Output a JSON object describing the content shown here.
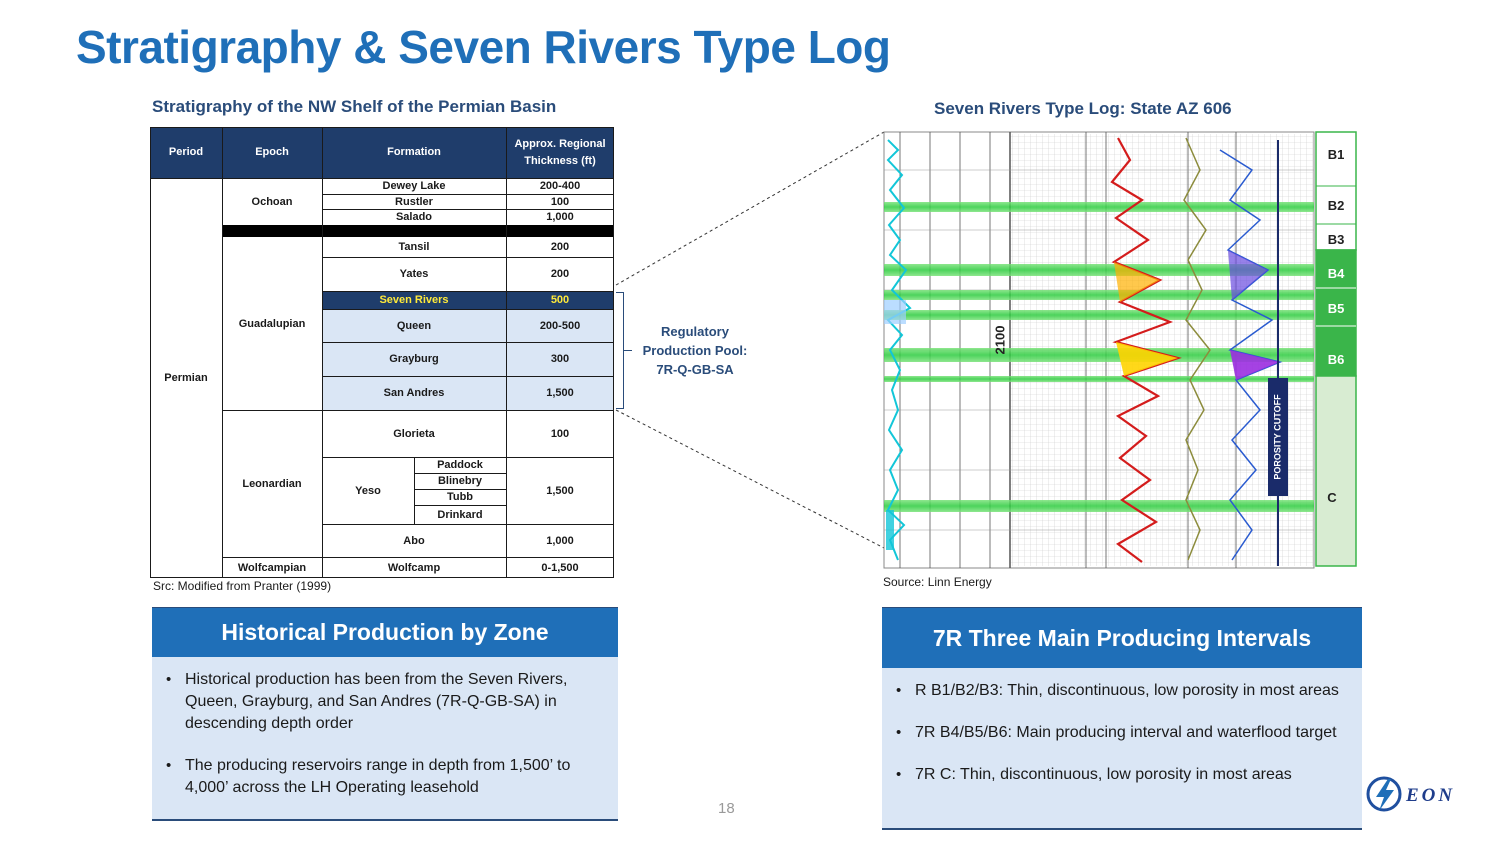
{
  "title": "Stratigraphy & Seven Rivers Type Log",
  "left_subtitle": "Stratigraphy of the NW Shelf of the Permian Basin",
  "right_subtitle": "Seven Rivers Type Log: State AZ 606",
  "strat_table": {
    "headers": {
      "period": "Period",
      "epoch": "Epoch",
      "formation": "Formation",
      "thickness": "Approx. Regional Thickness (ft)"
    },
    "period": "Permian",
    "epochs": {
      "ochoan": "Ochoan",
      "guadalupian": "Guadalupian",
      "leonardian": "Leonardian",
      "wolfcampian": "Wolfcampian"
    },
    "rows": [
      {
        "formation": "Dewey Lake",
        "thickness": "200-400"
      },
      {
        "formation": "Rustler",
        "thickness": "100"
      },
      {
        "formation": "Salado",
        "thickness": "1,000"
      },
      {
        "formation": "Tansil",
        "thickness": "200"
      },
      {
        "formation": "Yates",
        "thickness": "200"
      },
      {
        "formation": "Seven Rivers",
        "thickness": "500"
      },
      {
        "formation": "Queen",
        "thickness": "200-500"
      },
      {
        "formation": "Grayburg",
        "thickness": "300"
      },
      {
        "formation": "San Andres",
        "thickness": "1,500"
      },
      {
        "formation": "Glorieta",
        "thickness": "100"
      },
      {
        "formation": "Yeso",
        "thickness": "1,500"
      },
      {
        "formation": "Abo",
        "thickness": "1,000"
      },
      {
        "formation": "Wolfcamp",
        "thickness": "0-1,500"
      }
    ],
    "yeso_members": [
      "Paddock",
      "Blinebry",
      "Tubb",
      "Drinkard"
    ]
  },
  "strat_source": "Src: Modified from Pranter (1999)",
  "regulatory": [
    "Regulatory",
    "Production Pool:",
    "7R-Q-GB-SA"
  ],
  "log": {
    "zones": [
      "B1",
      "B2",
      "B3",
      "B4",
      "B5",
      "B6",
      "C"
    ],
    "depth_label": "2100",
    "cutoff_label": "POROSITY CUTOFF"
  },
  "log_source": "Source: Linn Energy",
  "historical": {
    "title": "Historical Production by Zone",
    "bullets": [
      "Historical production has been from the Seven Rivers, Queen, Grayburg, and San Andres (7R-Q-GB-SA) in descending depth order",
      "The producing reservoirs range in depth from 1,500’ to 4,000’ across the LH Operating leasehold"
    ]
  },
  "intervals": {
    "title": "7R Three Main Producing Intervals",
    "bullets": [
      "R B1/B2/B3: Thin, discontinuous, low porosity in most areas",
      "7R B4/B5/B6: Main producing interval and waterflood target",
      "7R C: Thin, discontinuous, low porosity in most areas"
    ]
  },
  "page_number": "18",
  "logo_text": "EON",
  "colors": {
    "title_blue": "#1f6fb8",
    "navy": "#1f3d6b",
    "light_blue": "#dae6f5",
    "highlight_yellow": "#ffea3a"
  }
}
